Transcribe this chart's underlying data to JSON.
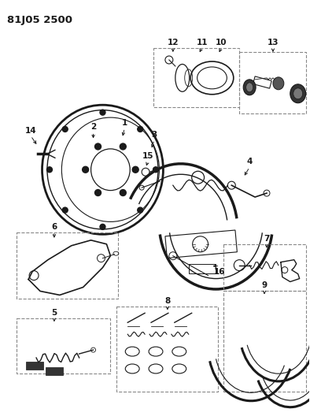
{
  "title": "81J05 2500",
  "bg_color": "#ffffff",
  "fg_color": "#1a1a1a",
  "fig_width": 3.94,
  "fig_height": 5.33,
  "dpi": 100,
  "box_color": "#888888",
  "label_fontsize": 7.5,
  "title_fontsize": 9.5
}
